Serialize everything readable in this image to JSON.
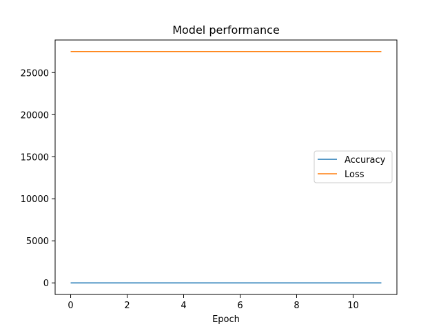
{
  "chart_data": {
    "type": "line",
    "title": "Model performance",
    "xlabel": "Epoch",
    "ylabel": "",
    "x": [
      0,
      1,
      2,
      3,
      4,
      5,
      6,
      7,
      8,
      9,
      10,
      11
    ],
    "xlim": [
      -0.55,
      11.55
    ],
    "ylim": [
      -1375,
      28875
    ],
    "xticks": [
      0,
      2,
      4,
      6,
      8,
      10
    ],
    "yticks": [
      0,
      5000,
      10000,
      15000,
      20000,
      25000
    ],
    "legend_position": "center-right",
    "grid": false,
    "series": [
      {
        "name": "Accuracy",
        "color": "#1f77b4",
        "values": [
          0.5,
          0.5,
          0.5,
          0.5,
          0.5,
          0.5,
          0.5,
          0.5,
          0.5,
          0.5,
          0.5,
          0.5
        ]
      },
      {
        "name": "Loss",
        "color": "#ff7f0e",
        "values": [
          27500,
          27500,
          27500,
          27500,
          27500,
          27500,
          27500,
          27500,
          27500,
          27500,
          27500,
          27500
        ]
      }
    ]
  }
}
